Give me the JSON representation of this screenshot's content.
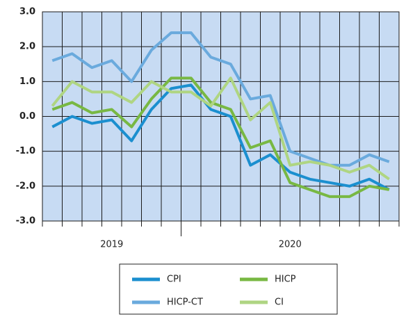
{
  "chart_data": {
    "type": "line",
    "categories": [
      null,
      null,
      null,
      null,
      null,
      null,
      null,
      null,
      null,
      null,
      null,
      null,
      null,
      null,
      null,
      null,
      null,
      null
    ],
    "x_groups": [
      {
        "label": "2019",
        "count": 7
      },
      {
        "label": "2020",
        "count": 11
      }
    ],
    "series": [
      {
        "name": "CPI",
        "color": "#1b8fcf",
        "values": [
          -0.3,
          0.0,
          -0.2,
          -0.1,
          -0.7,
          0.2,
          0.8,
          0.9,
          0.2,
          0.0,
          -1.4,
          -1.1,
          -1.6,
          -1.8,
          -1.9,
          -2.0,
          -1.8,
          -2.1
        ]
      },
      {
        "name": "HICP-CT",
        "color": "#6aaadd",
        "values": [
          1.6,
          1.8,
          1.4,
          1.6,
          1.0,
          1.9,
          2.4,
          2.4,
          1.7,
          1.5,
          0.5,
          0.6,
          -1.0,
          -1.2,
          -1.4,
          -1.4,
          -1.1,
          -1.3
        ]
      },
      {
        "name": "HICP",
        "color": "#78b843",
        "values": [
          0.2,
          0.4,
          0.1,
          0.2,
          -0.3,
          0.5,
          1.1,
          1.1,
          0.4,
          0.2,
          -0.9,
          -0.7,
          -1.9,
          -2.1,
          -2.3,
          -2.3,
          -2.0,
          -2.1
        ]
      },
      {
        "name": "CI",
        "color": "#afd582",
        "values": [
          0.3,
          1.0,
          0.7,
          0.7,
          0.4,
          1.0,
          0.7,
          0.7,
          0.3,
          1.1,
          -0.1,
          0.4,
          -1.4,
          -1.3,
          -1.4,
          -1.6,
          -1.4,
          -1.8
        ]
      }
    ],
    "ylim": [
      -3,
      3
    ],
    "yticks": [
      {
        "value": -3,
        "label": "-3.0"
      },
      {
        "value": -2,
        "label": "-2.0"
      },
      {
        "value": -1,
        "label": "-1.0"
      },
      {
        "value": 0,
        "label": "0.0"
      },
      {
        "value": 1,
        "label": "1.0"
      },
      {
        "value": 2,
        "label": "2.0"
      },
      {
        "value": 3,
        "label": "3.0"
      }
    ],
    "grid": true,
    "background": "#c7dbf3"
  }
}
